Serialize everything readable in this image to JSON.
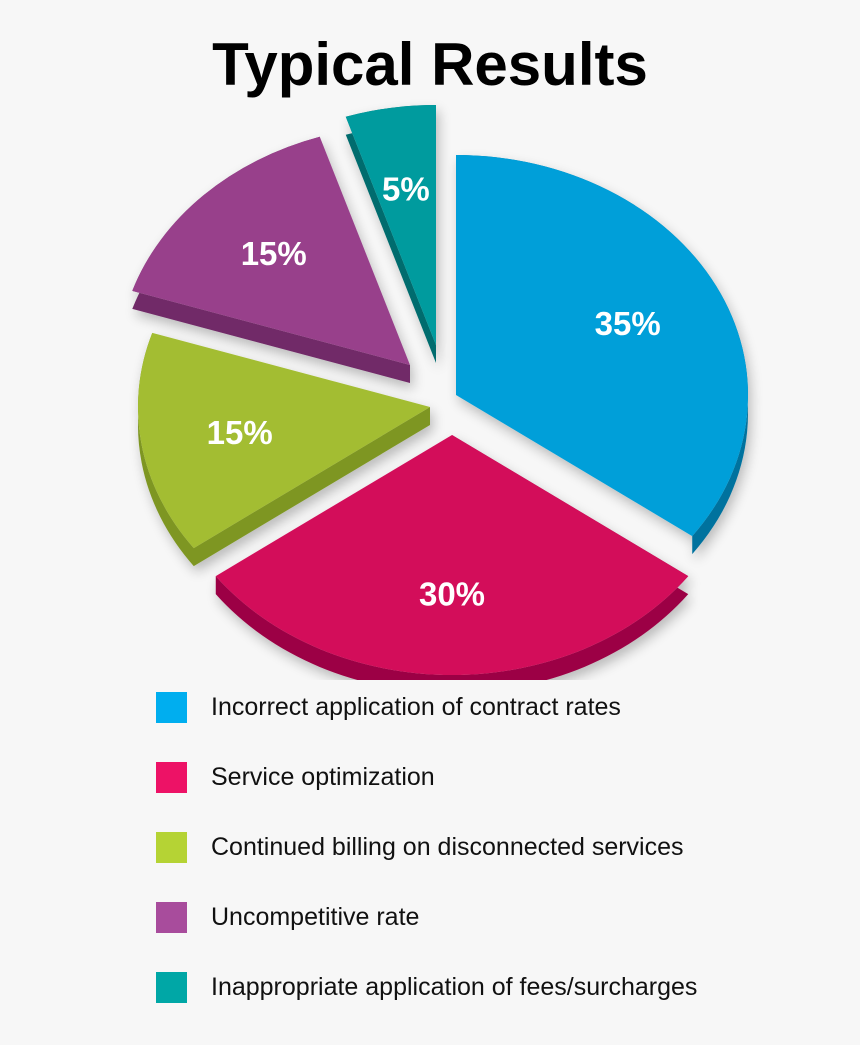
{
  "title": "Typical Results",
  "chart_data": {
    "type": "pie",
    "title": "Typical Results",
    "style": "3D exploded pie",
    "categories": [
      "Incorrect application of contract rates",
      "Service optimization",
      "Continued billing on disconnected services",
      "Uncompetitive rate",
      "Inappropriate application of fees/surcharges"
    ],
    "values": [
      35,
      30,
      15,
      15,
      5
    ],
    "labels": [
      "35%",
      "30%",
      "15%",
      "15%",
      "5%"
    ],
    "colors": [
      "#009fd9",
      "#d30b5a",
      "#a3bd30",
      "#98418b",
      "#009b9e"
    ],
    "side_colors": [
      "#00729e",
      "#9c0044",
      "#7e9623",
      "#712a67",
      "#006c6e"
    ],
    "legend_position": "bottom"
  },
  "legend": [
    {
      "label": "Incorrect application of contract rates",
      "color": "#00aeef"
    },
    {
      "label": "Service optimization",
      "color": "#ed1266"
    },
    {
      "label": "Continued billing on disconnected services",
      "color": "#b5d334"
    },
    {
      "label": "Uncompetitive rate",
      "color": "#a84c9c"
    },
    {
      "label": "Inappropriate application of fees/surcharges",
      "color": "#00a7a6"
    }
  ]
}
